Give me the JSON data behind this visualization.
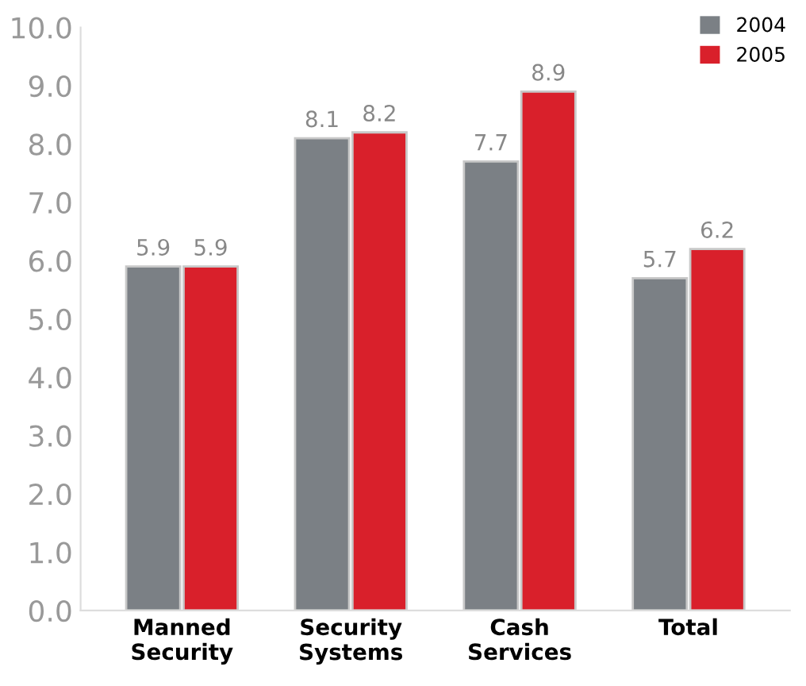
{
  "chart_data": {
    "type": "bar",
    "categories": [
      "Manned\nSecurity",
      "Security\nSystems",
      "Cash\nServices",
      "Total"
    ],
    "series": [
      {
        "name": "2004",
        "color": "#7b8085",
        "values": [
          5.9,
          8.1,
          7.7,
          5.7
        ]
      },
      {
        "name": "2005",
        "color": "#d9202b",
        "values": [
          5.9,
          8.2,
          8.9,
          6.2
        ]
      }
    ],
    "ylim": [
      0,
      10
    ],
    "yticks": [
      {
        "value": 0,
        "label": "0.0"
      },
      {
        "value": 1,
        "label": "1.0"
      },
      {
        "value": 2,
        "label": "2.0"
      },
      {
        "value": 3,
        "label": "3.0"
      },
      {
        "value": 4,
        "label": "4.0"
      },
      {
        "value": 5,
        "label": "5.0"
      },
      {
        "value": 6,
        "label": "6.0"
      },
      {
        "value": 7,
        "label": "7.0"
      },
      {
        "value": 8,
        "label": "8.0"
      },
      {
        "value": 9,
        "label": "9.0"
      },
      {
        "value": 10,
        "label": "10.0"
      }
    ],
    "grid": false,
    "legend": "top right",
    "data_labels": true
  }
}
